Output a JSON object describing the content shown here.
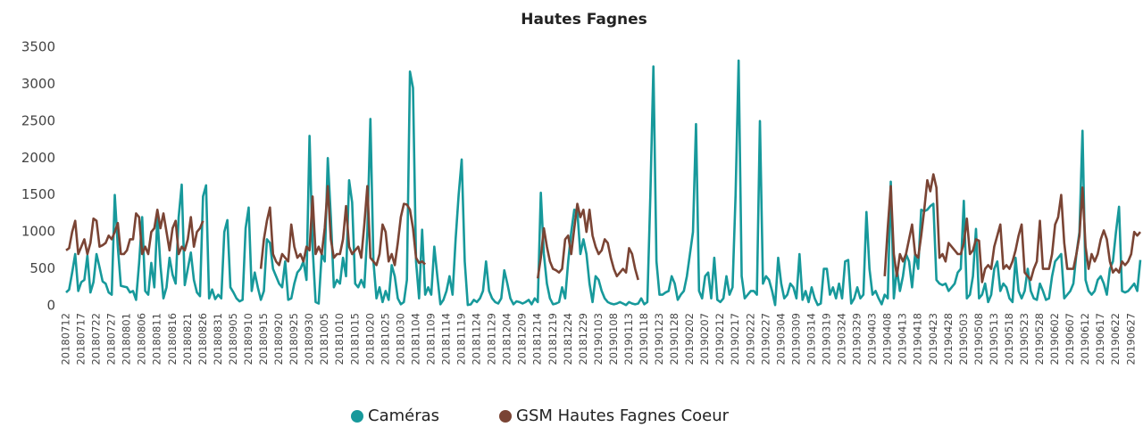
{
  "chart_data": {
    "type": "line",
    "title": "Hautes Fagnes",
    "categories": [
      "20180712",
      null,
      null,
      null,
      null,
      "20180717",
      null,
      null,
      null,
      null,
      "20180722",
      null,
      null,
      null,
      null,
      "20180727",
      null,
      null,
      null,
      null,
      "20180801",
      null,
      null,
      null,
      null,
      "20180806",
      null,
      null,
      null,
      null,
      "20180811",
      null,
      null,
      null,
      null,
      "20180816",
      null,
      null,
      null,
      null,
      "20180821",
      null,
      null,
      null,
      null,
      "20180826",
      null,
      null,
      null,
      null,
      "20180831",
      null,
      null,
      null,
      null,
      "20180905",
      null,
      null,
      null,
      null,
      "20180910",
      null,
      null,
      null,
      null,
      "20180915",
      null,
      null,
      null,
      null,
      "20180920",
      null,
      null,
      null,
      null,
      "20180925",
      null,
      null,
      null,
      null,
      "20180930",
      null,
      null,
      null,
      null,
      "20181005",
      null,
      null,
      null,
      null,
      "20181010",
      null,
      null,
      null,
      null,
      "20181015",
      null,
      null,
      null,
      null,
      "20181020",
      null,
      null,
      null,
      null,
      "20181025",
      null,
      null,
      null,
      null,
      "20181030",
      null,
      null,
      null,
      null,
      "20181104",
      null,
      null,
      null,
      null,
      "20181109",
      null,
      null,
      null,
      null,
      "20181114",
      null,
      null,
      null,
      null,
      "20181119",
      null,
      null,
      null,
      null,
      "20181124",
      null,
      null,
      null,
      null,
      "20181129",
      null,
      null,
      null,
      null,
      "20181204",
      null,
      null,
      null,
      null,
      "20181209",
      null,
      null,
      null,
      null,
      "20181214",
      null,
      null,
      null,
      null,
      "20181219",
      null,
      null,
      null,
      null,
      "20181224",
      null,
      null,
      null,
      null,
      "20181229",
      null,
      null,
      null,
      null,
      "20190103",
      null,
      null,
      null,
      null,
      "20190108",
      null,
      null,
      null,
      null,
      "20190113",
      null,
      null,
      null,
      null,
      "20190118",
      null,
      null,
      null,
      null,
      "20190123",
      null,
      null,
      null,
      null,
      "20190128",
      null,
      null,
      null,
      null,
      "20190202",
      null,
      null,
      null,
      null,
      "20190207",
      null,
      null,
      null,
      null,
      "20190212",
      null,
      null,
      null,
      null,
      "20190217",
      null,
      null,
      null,
      null,
      "20190222",
      null,
      null,
      null,
      null,
      "20190227",
      null,
      null,
      null,
      null,
      "20190304",
      null,
      null,
      null,
      null,
      "20190309",
      null,
      null,
      null,
      null,
      "20190314",
      null,
      null,
      null,
      null,
      "20190319",
      null,
      null,
      null,
      null,
      "20190324",
      null,
      null,
      null,
      null,
      "20190329",
      null,
      null,
      null,
      null,
      "20190403",
      null,
      null,
      null,
      null,
      "20190408",
      null,
      null,
      null,
      null,
      "20190413",
      null,
      null,
      null,
      null,
      "20190418",
      null,
      null,
      null,
      null,
      "20190423",
      null,
      null,
      null,
      null,
      "20190428",
      null,
      null,
      null,
      null,
      "20190503",
      null,
      null,
      null,
      null,
      "20190508",
      null,
      null,
      null,
      null,
      "20190513",
      null,
      null,
      null,
      null,
      "20190518",
      null,
      null,
      null,
      null,
      "20190523",
      null,
      null,
      null,
      null,
      "20190528",
      null,
      null,
      null,
      null,
      "20190602",
      null,
      null,
      null,
      null,
      "20190607",
      null,
      null,
      null,
      null,
      "20190612",
      null,
      null,
      null,
      null,
      "20190617",
      null,
      null,
      null,
      null,
      "20190622",
      null,
      null,
      null,
      null,
      "20190627",
      null,
      null,
      null
    ],
    "series": [
      {
        "name": "Caméras",
        "color": "#17999b",
        "values": [
          180,
          220,
          450,
          700,
          200,
          320,
          350,
          680,
          180,
          320,
          700,
          520,
          330,
          300,
          180,
          150,
          1500,
          800,
          270,
          260,
          250,
          180,
          200,
          80,
          580,
          1200,
          200,
          150,
          580,
          250,
          1200,
          550,
          100,
          250,
          650,
          420,
          300,
          1200,
          1640,
          280,
          500,
          720,
          350,
          180,
          130,
          1480,
          1630,
          100,
          220,
          90,
          150,
          100,
          1000,
          1160,
          250,
          180,
          100,
          60,
          80,
          1050,
          1330,
          200,
          450,
          250,
          80,
          200,
          900,
          850,
          500,
          400,
          300,
          250,
          600,
          80,
          100,
          300,
          450,
          500,
          600,
          350,
          2300,
          800,
          50,
          30,
          700,
          600,
          2000,
          1200,
          250,
          350,
          300,
          650,
          400,
          1700,
          1400,
          300,
          250,
          350,
          250,
          1000,
          2530,
          600,
          100,
          250,
          50,
          200,
          80,
          550,
          400,
          100,
          20,
          50,
          350,
          3170,
          2950,
          600,
          100,
          1030,
          150,
          250,
          150,
          800,
          400,
          20,
          80,
          200,
          400,
          150,
          900,
          1500,
          1980,
          600,
          10,
          20,
          80,
          50,
          100,
          200,
          600,
          200,
          100,
          50,
          30,
          100,
          480,
          300,
          100,
          20,
          60,
          50,
          30,
          50,
          80,
          20,
          100,
          50,
          1530,
          700,
          300,
          100,
          20,
          30,
          50,
          250,
          100,
          600,
          1000,
          1300,
          1280,
          700,
          900,
          700,
          300,
          50,
          400,
          350,
          200,
          100,
          50,
          30,
          20,
          30,
          50,
          30,
          10,
          50,
          30,
          20,
          30,
          100,
          20,
          50,
          1500,
          3240,
          600,
          150,
          150,
          180,
          200,
          400,
          300,
          80,
          150,
          200,
          400,
          700,
          1000,
          2460,
          200,
          100,
          400,
          450,
          100,
          650,
          80,
          50,
          100,
          400,
          150,
          250,
          1500,
          3320,
          400,
          100,
          150,
          200,
          200,
          150,
          2500,
          300,
          400,
          350,
          200,
          10,
          650,
          300,
          100,
          150,
          300,
          250,
          100,
          700,
          80,
          200,
          50,
          250,
          100,
          10,
          30,
          500,
          500,
          150,
          250,
          100,
          300,
          100,
          600,
          620,
          30,
          100,
          250,
          100,
          150,
          1270,
          500,
          150,
          200,
          100,
          20,
          150,
          100,
          1680,
          100,
          500,
          200,
          400,
          700,
          600,
          250,
          700,
          500,
          1300,
          1280,
          1300,
          1350,
          1380,
          350,
          300,
          280,
          300,
          200,
          250,
          300,
          450,
          500,
          1420,
          100,
          150,
          400,
          1040,
          100,
          150,
          300,
          50,
          150,
          500,
          600,
          200,
          300,
          250,
          100,
          50,
          650,
          200,
          100,
          200,
          500,
          200,
          100,
          80,
          300,
          200,
          80,
          100,
          400,
          600,
          650,
          700,
          100,
          150,
          200,
          300,
          700,
          1000,
          2370,
          350,
          200,
          150,
          200,
          350,
          400,
          300,
          150,
          500,
          600,
          1000,
          1340,
          200,
          180,
          200,
          250,
          300,
          200,
          620
        ]
      },
      {
        "name": "GSM Hautes Fagnes Coeur",
        "color": "#7a4434",
        "values": [
          750,
          780,
          1000,
          1150,
          700,
          800,
          900,
          700,
          850,
          1180,
          1150,
          800,
          820,
          850,
          950,
          900,
          1000,
          1120,
          700,
          700,
          750,
          900,
          900,
          1250,
          1200,
          700,
          800,
          700,
          1000,
          1050,
          1300,
          1050,
          1250,
          1000,
          750,
          1050,
          1150,
          700,
          800,
          750,
          900,
          1200,
          800,
          1000,
          1050,
          1150,
          null,
          null,
          null,
          null,
          null,
          null,
          null,
          null,
          null,
          null,
          null,
          null,
          null,
          null,
          null,
          null,
          null,
          null,
          500,
          900,
          1150,
          1330,
          700,
          600,
          550,
          700,
          650,
          600,
          1100,
          800,
          650,
          700,
          600,
          800,
          750,
          1480,
          700,
          800,
          700,
          1050,
          1620,
          900,
          650,
          700,
          700,
          900,
          1350,
          800,
          700,
          750,
          800,
          650,
          1100,
          1620,
          650,
          600,
          550,
          700,
          1100,
          1000,
          600,
          700,
          550,
          850,
          1200,
          1380,
          1370,
          1300,
          1050,
          650,
          580,
          600,
          560,
          null,
          null,
          null,
          null,
          null,
          null,
          null,
          null,
          null,
          null,
          null,
          null,
          null,
          null,
          null,
          null,
          null,
          null,
          null,
          null,
          null,
          null,
          null,
          null,
          null,
          null,
          null,
          null,
          null,
          null,
          null,
          null,
          null,
          null,
          null,
          null,
          370,
          650,
          1050,
          800,
          600,
          500,
          480,
          450,
          500,
          900,
          950,
          700,
          1050,
          1380,
          1200,
          1300,
          1000,
          1300,
          950,
          800,
          700,
          750,
          900,
          850,
          650,
          500,
          400,
          450,
          500,
          450,
          780,
          700,
          500,
          350,
          null,
          null,
          null,
          null,
          null,
          null,
          null,
          null,
          null,
          null,
          null,
          null,
          null,
          null,
          null,
          null,
          null,
          null,
          null,
          null,
          null,
          null,
          null,
          null,
          null,
          null,
          null,
          null,
          null,
          null,
          null,
          null,
          null,
          null,
          null,
          null,
          null,
          null,
          null,
          null,
          null,
          null,
          null,
          null,
          null,
          null,
          null,
          null,
          null,
          null,
          null,
          null,
          null,
          null,
          null,
          null,
          null,
          null,
          null,
          null,
          null,
          null,
          null,
          null,
          null,
          null,
          null,
          null,
          null,
          null,
          null,
          null,
          null,
          null,
          null,
          null,
          null,
          null,
          null,
          null,
          400,
          1050,
          1620,
          700,
          400,
          700,
          600,
          700,
          900,
          1100,
          700,
          650,
          950,
          1300,
          1700,
          1550,
          1780,
          1600,
          650,
          700,
          600,
          850,
          800,
          750,
          700,
          700,
          850,
          1180,
          700,
          750,
          900,
          880,
          320,
          500,
          550,
          500,
          800,
          950,
          1100,
          500,
          550,
          500,
          600,
          750,
          950,
          1100,
          450,
          400,
          350,
          500,
          600,
          1150,
          500,
          500,
          500,
          700,
          1100,
          1200,
          1500,
          850,
          500,
          500,
          500,
          700,
          950,
          1600,
          800,
          500,
          700,
          600,
          700,
          900,
          1020,
          900,
          600,
          450,
          500,
          450,
          600,
          550,
          600,
          700,
          1000,
          950,
          1000
        ]
      }
    ],
    "ylim": [
      0,
      3500
    ],
    "yticks": [
      0,
      500,
      1000,
      1500,
      2000,
      2500,
      3000,
      3500
    ],
    "grid": false,
    "legend": "bottom"
  }
}
